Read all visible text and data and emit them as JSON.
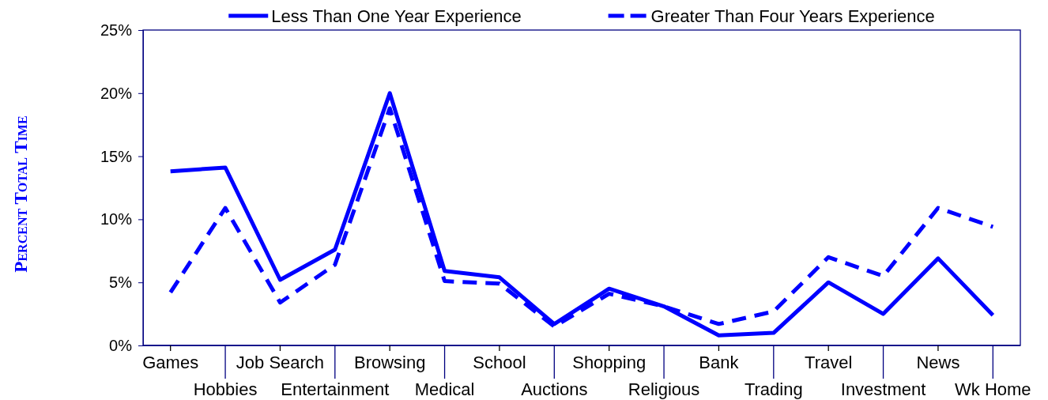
{
  "chart_data": {
    "type": "line",
    "categories": [
      "Games",
      "Hobbies",
      "Job Search",
      "Entertainment",
      "Browsing",
      "Medical",
      "School",
      "Auctions",
      "Shopping",
      "Religious",
      "Bank",
      "Trading",
      "Travel",
      "Investment",
      "News",
      "Wk Home"
    ],
    "series": [
      {
        "name": "Less Than One Year Experience",
        "color": "#0000ff",
        "line_style": "solid",
        "values": [
          13.8,
          14.1,
          5.2,
          7.6,
          20.0,
          5.9,
          5.4,
          1.7,
          4.5,
          3.1,
          0.8,
          1.0,
          5.0,
          2.5,
          6.9,
          2.4
        ]
      },
      {
        "name": "Greater Than Four Years Experience",
        "color": "#0000ff",
        "line_style": "dashed",
        "values": [
          4.2,
          10.9,
          3.4,
          6.4,
          18.8,
          5.1,
          4.9,
          1.5,
          4.1,
          3.1,
          1.7,
          2.7,
          7.0,
          5.5,
          10.9,
          9.4
        ]
      }
    ],
    "ylabel": "Percent Total Time",
    "ylim": [
      0,
      25
    ],
    "yticks": [
      {
        "value": 0,
        "label": "0%"
      },
      {
        "value": 5,
        "label": "5%"
      },
      {
        "value": 10,
        "label": "10%"
      },
      {
        "value": 15,
        "label": "15%"
      },
      {
        "value": 20,
        "label": "20%"
      },
      {
        "value": 25,
        "label": "25%"
      }
    ],
    "legend": "top",
    "grid": false
  }
}
